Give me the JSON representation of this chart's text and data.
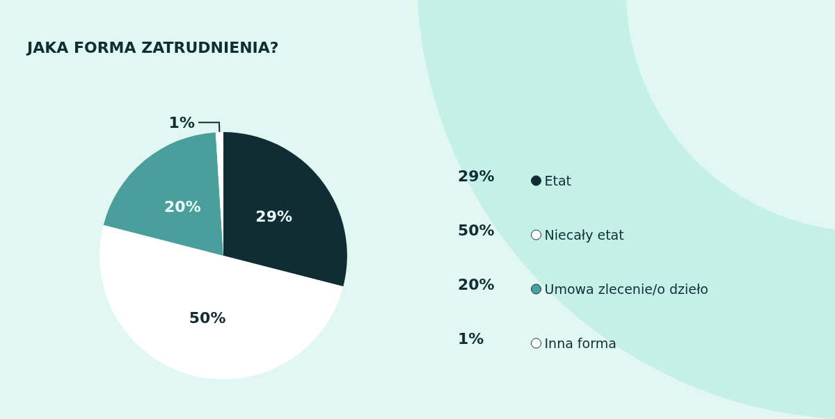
{
  "chart_data": {
    "type": "pie",
    "title": "JAKA FORMA ZATRUDNIENIA?",
    "categories": [
      "Etat",
      "Niecały etat",
      "Umowa zlecenie/o dzieło",
      "Inna forma"
    ],
    "values": [
      29,
      50,
      20,
      1
    ],
    "value_labels": [
      "29%",
      "50%",
      "20%",
      "1%"
    ],
    "colors": [
      "#0f2d33",
      "#ffffff",
      "#4a9f9c",
      "#ffffff"
    ],
    "legend": "right"
  }
}
